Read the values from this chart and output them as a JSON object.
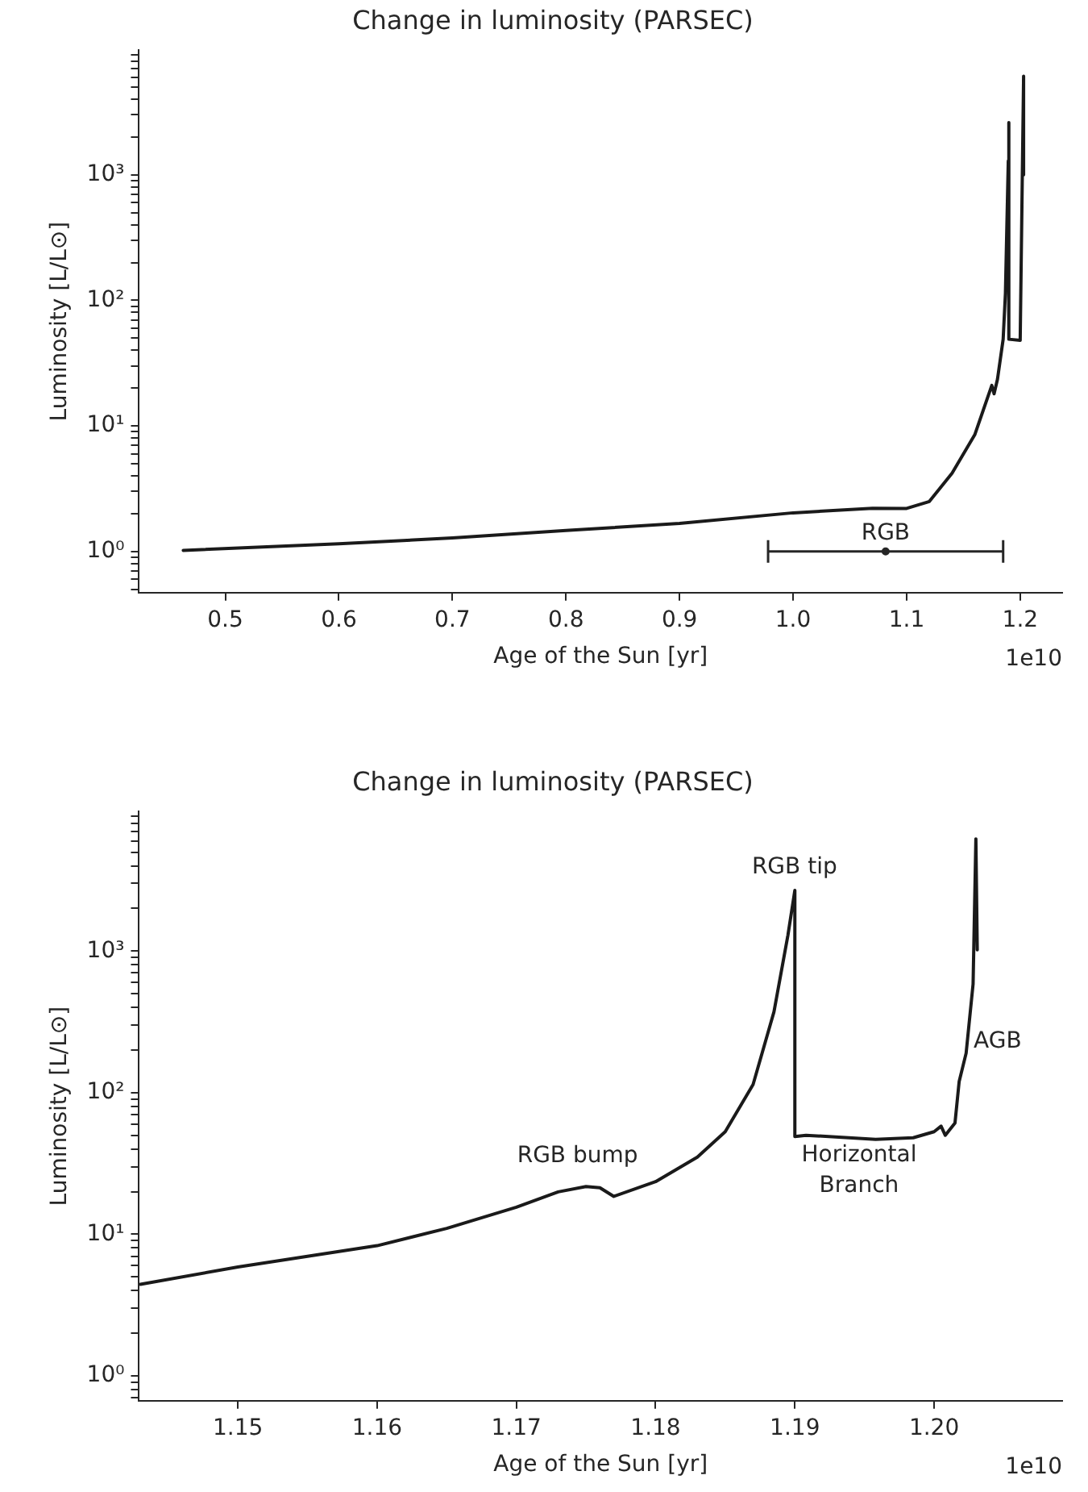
{
  "chart_data": [
    {
      "type": "line",
      "title": "Change in luminosity (PARSEC)",
      "xlabel": "Age of the Sun [yr]",
      "ylabel": "Luminosity [L/L⊙]",
      "log": "y",
      "series": [
        {
          "color": "#1a1a1a",
          "x": [
            0.463,
            0.6,
            0.7,
            0.8,
            0.9,
            1.0,
            1.07,
            1.1,
            1.12,
            1.14,
            1.16,
            1.175,
            1.177,
            1.18,
            1.185,
            1.187,
            1.1895,
            1.19,
            1.19,
            1.2,
            1.203,
            1.203
          ],
          "values": [
            1.02,
            1.15,
            1.28,
            1.47,
            1.67,
            2.03,
            2.21,
            2.2,
            2.5,
            4.2,
            8.5,
            21,
            18,
            23.5,
            49,
            114,
            1290,
            2600,
            49,
            48,
            6100,
            1000
          ]
        },
        {
          "type": "scatter",
          "name": "RGB",
          "color": "#262626",
          "x": [
            1.0815
          ],
          "values": [
            1
          ],
          "xerrors": [
            [
              0.978,
              1.185
            ]
          ]
        }
      ],
      "xlim": [
        0.424,
        1.237
      ],
      "xticks": [
        0.5,
        0.6,
        0.7,
        0.8,
        0.9,
        {
          "value": 1.0,
          "label": "1.0"
        },
        1.1,
        1.2
      ],
      "ylim": [
        0.47,
        9800
      ],
      "yticks": [
        {
          "value": 0.5,
          "label": null
        },
        {
          "value": 0.6,
          "label": null
        },
        {
          "value": 0.7,
          "label": null
        },
        {
          "value": 0.8,
          "label": null
        },
        {
          "value": 0.9,
          "label": null
        },
        {
          "value": 1,
          "label": "10⁰"
        },
        {
          "value": 2,
          "label": null
        },
        {
          "value": 3,
          "label": null
        },
        {
          "value": 4,
          "label": null
        },
        {
          "value": 5,
          "label": null
        },
        {
          "value": 6,
          "label": null
        },
        {
          "value": 7,
          "label": null
        },
        {
          "value": 8,
          "label": null
        },
        {
          "value": 9,
          "label": null
        },
        {
          "value": 10,
          "label": "10¹"
        },
        {
          "value": 20,
          "label": null
        },
        {
          "value": 30,
          "label": null
        },
        {
          "value": 40,
          "label": null
        },
        {
          "value": 50,
          "label": null
        },
        {
          "value": 60,
          "label": null
        },
        {
          "value": 70,
          "label": null
        },
        {
          "value": 80,
          "label": null
        },
        {
          "value": 90,
          "label": null
        },
        {
          "value": 100,
          "label": "10²"
        },
        {
          "value": 200,
          "label": null
        },
        {
          "value": 300,
          "label": null
        },
        {
          "value": 400,
          "label": null
        },
        {
          "value": 500,
          "label": null
        },
        {
          "value": 600,
          "label": null
        },
        {
          "value": 700,
          "label": null
        },
        {
          "value": 800,
          "label": null
        },
        {
          "value": 900,
          "label": null
        },
        {
          "value": 1000,
          "label": "10³"
        },
        {
          "value": 2000,
          "label": null
        },
        {
          "value": 3000,
          "label": null
        },
        {
          "value": 4000,
          "label": null
        },
        {
          "value": 5000,
          "label": null
        },
        {
          "value": 6000,
          "label": null
        },
        {
          "value": 7000,
          "label": null
        },
        {
          "value": 8000,
          "label": null
        },
        {
          "value": 9000,
          "label": null
        }
      ],
      "annotations": [
        "1e10"
      ]
    },
    {
      "type": "line",
      "title": "Change in luminosity (PARSEC)",
      "xlabel": "Age of the Sun [yr]",
      "ylabel": "Luminosity [L/L⊙]",
      "log": "y",
      "series": [
        {
          "color": "#1a1a1a",
          "x": [
            1.143,
            1.15,
            1.16,
            1.165,
            1.17,
            1.173,
            1.175,
            1.176,
            1.177,
            1.18,
            1.183,
            1.185,
            1.187,
            1.1885,
            1.1895,
            1.19,
            1.19,
            1.1908,
            1.1958,
            1.1985,
            1.2,
            1.2005,
            1.2008,
            1.2015,
            1.2018,
            1.2023,
            1.2028,
            1.203,
            1.2031
          ],
          "values": [
            4.43,
            5.87,
            8.3,
            11.0,
            15.5,
            19.9,
            21.7,
            21.3,
            18.5,
            23.5,
            35,
            53,
            114,
            372,
            1290,
            2680,
            49,
            50,
            46.8,
            48,
            53,
            58,
            50,
            61,
            120,
            190,
            585,
            6200,
            1020
          ]
        }
      ],
      "xlim": [
        1.1429,
        1.2092
      ],
      "xticks": [
        1.15,
        1.16,
        1.17,
        1.18,
        1.19,
        {
          "value": 1.2,
          "label": "1.20"
        }
      ],
      "ylim": [
        0.667,
        9650
      ],
      "yticks": [
        {
          "value": 0.7,
          "label": null
        },
        {
          "value": 0.8,
          "label": null
        },
        {
          "value": 0.9,
          "label": null
        },
        {
          "value": 1,
          "label": "10⁰"
        },
        {
          "value": 2,
          "label": null
        },
        {
          "value": 3,
          "label": null
        },
        {
          "value": 4,
          "label": null
        },
        {
          "value": 5,
          "label": null
        },
        {
          "value": 6,
          "label": null
        },
        {
          "value": 7,
          "label": null
        },
        {
          "value": 8,
          "label": null
        },
        {
          "value": 9,
          "label": null
        },
        {
          "value": 10,
          "label": "10¹"
        },
        {
          "value": 20,
          "label": null
        },
        {
          "value": 30,
          "label": null
        },
        {
          "value": 40,
          "label": null
        },
        {
          "value": 50,
          "label": null
        },
        {
          "value": 60,
          "label": null
        },
        {
          "value": 70,
          "label": null
        },
        {
          "value": 80,
          "label": null
        },
        {
          "value": 90,
          "label": null
        },
        {
          "value": 100,
          "label": "10²"
        },
        {
          "value": 200,
          "label": null
        },
        {
          "value": 300,
          "label": null
        },
        {
          "value": 400,
          "label": null
        },
        {
          "value": 500,
          "label": null
        },
        {
          "value": 600,
          "label": null
        },
        {
          "value": 700,
          "label": null
        },
        {
          "value": 800,
          "label": null
        },
        {
          "value": 900,
          "label": null
        },
        {
          "value": 1000,
          "label": "10³"
        },
        {
          "value": 2000,
          "label": null
        },
        {
          "value": 3000,
          "label": null
        },
        {
          "value": 4000,
          "label": null
        },
        {
          "value": 5000,
          "label": null
        },
        {
          "value": 6000,
          "label": null
        },
        {
          "value": 7000,
          "label": null
        },
        {
          "value": 8000,
          "label": null
        },
        {
          "value": 9000,
          "label": null
        }
      ],
      "annotations": [
        "RGB tip",
        "RGB bump",
        "Horizontal\nBranch",
        "AGB",
        "1e10"
      ]
    }
  ]
}
